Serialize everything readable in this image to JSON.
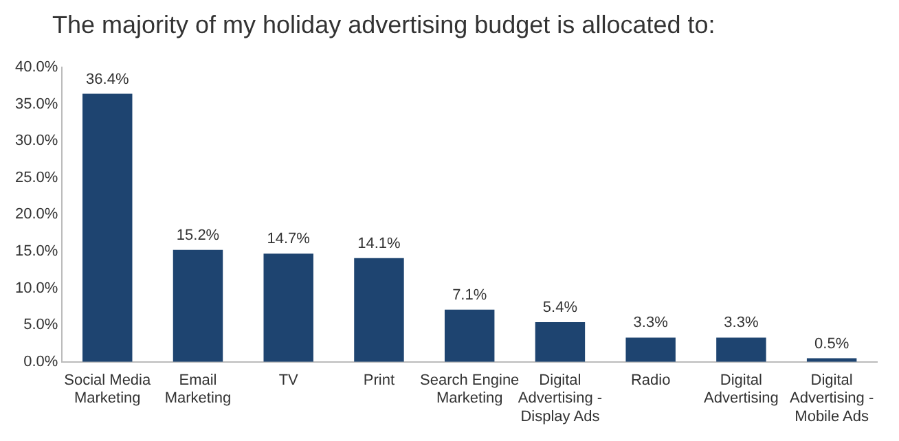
{
  "chart_data": {
    "type": "bar",
    "title": "The majority of my holiday advertising budget is allocated to:",
    "categories": [
      "Social Media Marketing",
      "Email Marketing",
      "TV",
      "Print",
      "Search Engine Marketing",
      "Digital Advertising - Display Ads",
      "Radio",
      "Digital Advertising",
      "Digital Advertising - Mobile Ads"
    ],
    "values": [
      36.4,
      15.2,
      14.7,
      14.1,
      7.1,
      5.4,
      3.3,
      3.3,
      0.5
    ],
    "value_labels": [
      "36.4%",
      "15.2%",
      "14.7%",
      "14.1%",
      "7.1%",
      "5.4%",
      "3.3%",
      "3.3%",
      "0.5%"
    ],
    "color": "#1e4470",
    "ylim": [
      0,
      40
    ],
    "yticks": [
      {
        "value": 0,
        "label": "0.0%"
      },
      {
        "value": 5,
        "label": "5.0%"
      },
      {
        "value": 10,
        "label": "10.0%"
      },
      {
        "value": 15,
        "label": "15.0%"
      },
      {
        "value": 20,
        "label": "20.0%"
      },
      {
        "value": 25,
        "label": "25.0%"
      },
      {
        "value": 30,
        "label": "30.0%"
      },
      {
        "value": 35,
        "label": "35.0%"
      },
      {
        "value": 40,
        "label": "40.0%"
      }
    ],
    "grid": false,
    "legend": false
  }
}
